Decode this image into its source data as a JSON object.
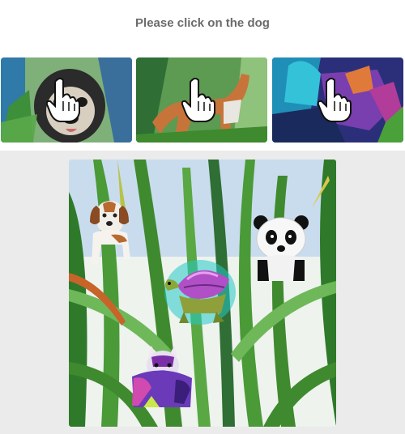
{
  "captcha": {
    "instruction": "Please click on the dog",
    "examples": [
      {
        "subject": "pug dog watercolor"
      },
      {
        "subject": "hound dog in jungle"
      },
      {
        "subject": "colorful dog painting"
      }
    ],
    "cursor_icon": "hand-pointer-icon",
    "board_animals": [
      "beagle-dog",
      "panda",
      "turtle",
      "cow"
    ]
  },
  "colors": {
    "prompt_text": "#6b6b6b",
    "panel_background": "#ebebeb",
    "leaf_green": "#3f8a2e",
    "sky_blue": "#8fb8dc"
  }
}
